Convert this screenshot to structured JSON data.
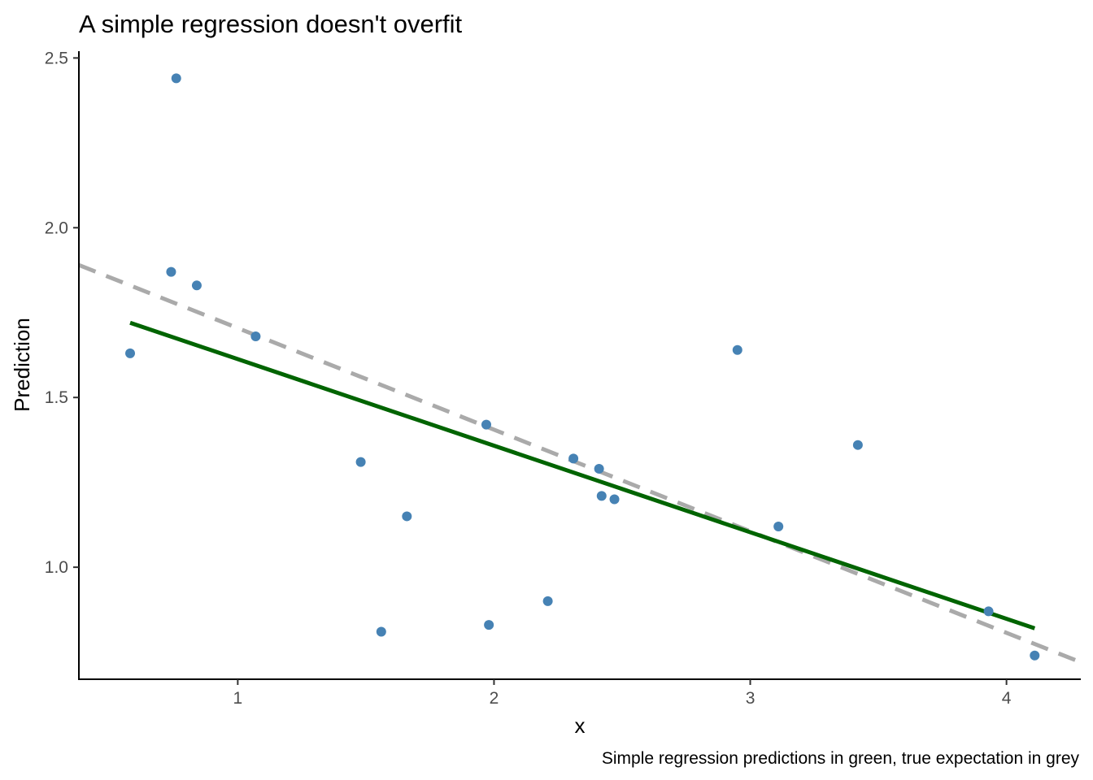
{
  "chart_data": {
    "type": "scatter",
    "title": "A simple regression doesn't overfit",
    "xlabel": "x",
    "ylabel": "Prediction",
    "caption": "Simple regression predictions in green, true expectation in grey",
    "xlim": [
      0.38,
      4.29
    ],
    "ylim": [
      0.67,
      2.52
    ],
    "x_ticks": [
      {
        "value": 1,
        "label": "1"
      },
      {
        "value": 2,
        "label": "2"
      },
      {
        "value": 3,
        "label": "3"
      },
      {
        "value": 4,
        "label": "4"
      }
    ],
    "y_ticks": [
      {
        "value": 1.0,
        "label": "1.0"
      },
      {
        "value": 1.5,
        "label": "1.5"
      },
      {
        "value": 2.0,
        "label": "2.0"
      },
      {
        "value": 2.5,
        "label": "2.5"
      }
    ],
    "grid": false,
    "points": {
      "color": "#4682b4",
      "x": [
        0.58,
        0.74,
        0.76,
        0.84,
        1.07,
        1.48,
        1.56,
        1.66,
        1.97,
        1.98,
        2.21,
        2.31,
        2.41,
        2.42,
        2.47,
        2.95,
        3.11,
        3.42,
        3.93,
        4.11
      ],
      "y": [
        1.63,
        1.87,
        2.44,
        1.83,
        1.68,
        1.31,
        0.81,
        1.15,
        1.42,
        0.83,
        0.9,
        1.32,
        1.29,
        1.21,
        1.2,
        1.64,
        1.12,
        1.36,
        0.87,
        0.74
      ]
    },
    "fit_line": {
      "color": "#006400",
      "style": "solid",
      "x": [
        0.58,
        4.11
      ],
      "y": [
        1.72,
        0.82
      ]
    },
    "true_line": {
      "color": "#aaaaaa",
      "style": "dashed",
      "x": [
        0.38,
        4.29
      ],
      "y": [
        1.89,
        0.72
      ]
    }
  }
}
